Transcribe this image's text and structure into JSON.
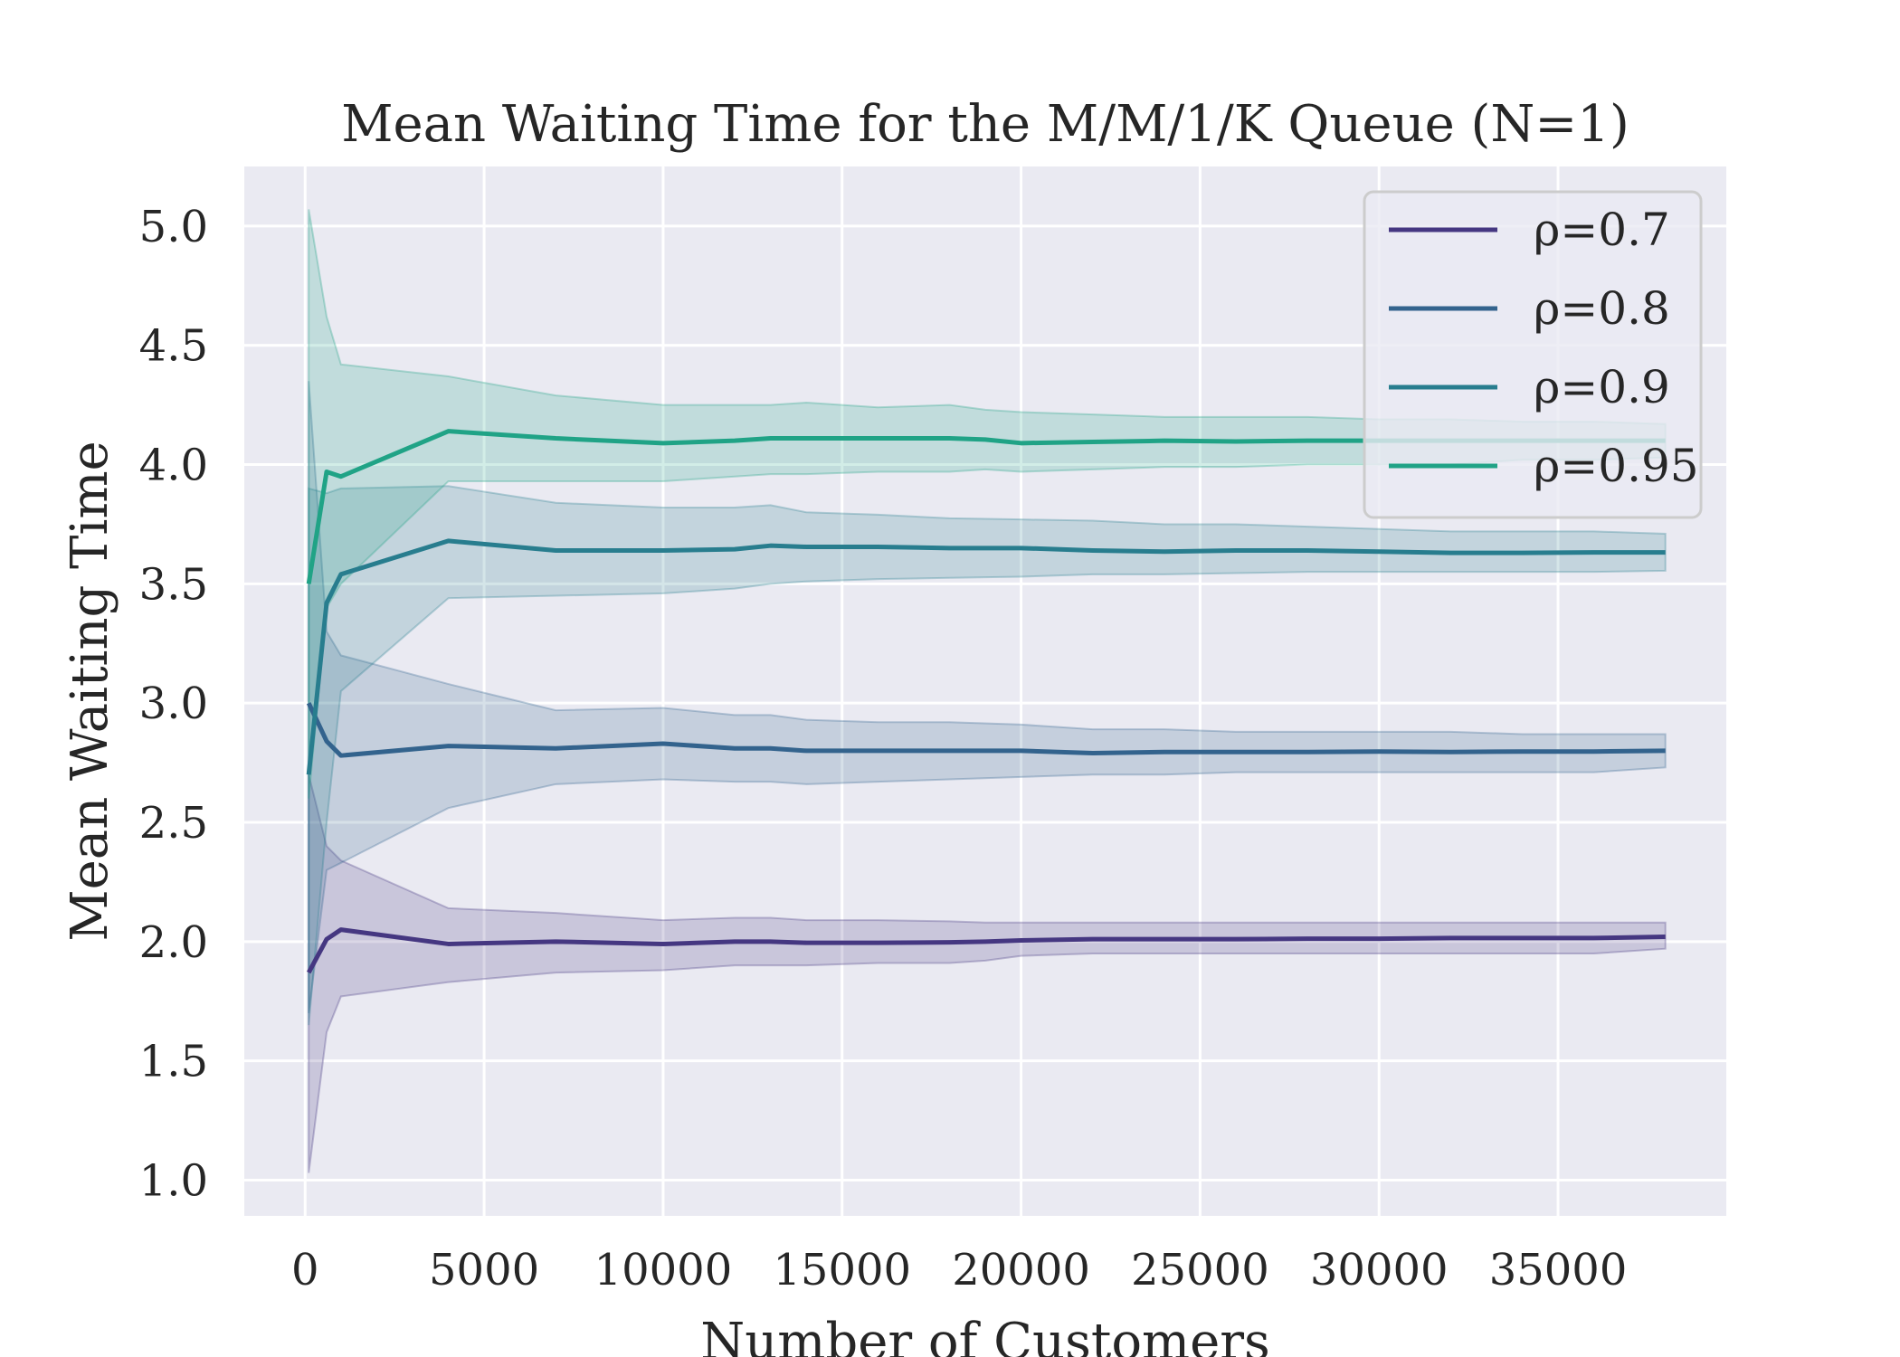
{
  "chart_data": {
    "type": "line",
    "title": "Mean Waiting Time for the M/M/1/K Queue (N=1)",
    "xlabel": "Number of Customers",
    "ylabel": "Mean Waiting Time",
    "xlim": [
      -1700,
      39700
    ],
    "ylim": [
      0.85,
      5.25
    ],
    "xticks": [
      0,
      5000,
      10000,
      15000,
      20000,
      25000,
      30000,
      35000
    ],
    "yticks": [
      1.0,
      1.5,
      2.0,
      2.5,
      3.0,
      3.5,
      4.0,
      4.5,
      5.0
    ],
    "xtick_labels": [
      "0",
      "5000",
      "10000",
      "15000",
      "20000",
      "25000",
      "30000",
      "35000"
    ],
    "ytick_labels": [
      "1.0",
      "1.5",
      "2.0",
      "2.5",
      "3.0",
      "3.5",
      "4.0",
      "4.5",
      "5.0"
    ],
    "grid": true,
    "legend_position": "top-right",
    "background": "#eaeaf2",
    "series": [
      {
        "name": "ρ=0.7",
        "color": "#453781",
        "x": [
          100,
          600,
          1000,
          4000,
          7000,
          10000,
          12000,
          13000,
          14000,
          16000,
          18000,
          19000,
          20000,
          22000,
          24000,
          26000,
          28000,
          30000,
          32000,
          34000,
          36000,
          38000
        ],
        "y": [
          1.87,
          2.01,
          2.05,
          1.99,
          2.0,
          1.99,
          2.0,
          2.0,
          1.995,
          1.995,
          1.997,
          2.0,
          2.005,
          2.01,
          2.01,
          2.01,
          2.012,
          2.012,
          2.015,
          2.015,
          2.015,
          2.02
        ],
        "lower": [
          1.03,
          1.62,
          1.77,
          1.83,
          1.87,
          1.88,
          1.9,
          1.9,
          1.9,
          1.91,
          1.91,
          1.92,
          1.94,
          1.95,
          1.95,
          1.95,
          1.95,
          1.95,
          1.95,
          1.95,
          1.95,
          1.97
        ],
        "upper": [
          2.7,
          2.4,
          2.34,
          2.14,
          2.12,
          2.09,
          2.1,
          2.1,
          2.09,
          2.09,
          2.085,
          2.08,
          2.08,
          2.08,
          2.08,
          2.08,
          2.08,
          2.08,
          2.08,
          2.08,
          2.08,
          2.08
        ]
      },
      {
        "name": "ρ=0.8",
        "color": "#33638d",
        "x": [
          100,
          600,
          1000,
          4000,
          7000,
          10000,
          12000,
          13000,
          14000,
          16000,
          18000,
          20000,
          22000,
          24000,
          26000,
          28000,
          30000,
          32000,
          34000,
          36000,
          38000
        ],
        "y": [
          3.0,
          2.84,
          2.78,
          2.82,
          2.81,
          2.83,
          2.81,
          2.81,
          2.8,
          2.8,
          2.8,
          2.8,
          2.79,
          2.795,
          2.795,
          2.795,
          2.797,
          2.795,
          2.797,
          2.797,
          2.8
        ],
        "lower": [
          1.7,
          2.3,
          2.33,
          2.56,
          2.66,
          2.68,
          2.67,
          2.67,
          2.66,
          2.67,
          2.68,
          2.69,
          2.7,
          2.7,
          2.71,
          2.71,
          2.71,
          2.71,
          2.71,
          2.71,
          2.73
        ],
        "upper": [
          4.35,
          3.3,
          3.2,
          3.08,
          2.97,
          2.98,
          2.95,
          2.95,
          2.93,
          2.92,
          2.92,
          2.91,
          2.89,
          2.89,
          2.88,
          2.88,
          2.88,
          2.88,
          2.87,
          2.87,
          2.87
        ]
      },
      {
        "name": "ρ=0.9",
        "color": "#287d8e",
        "x": [
          100,
          600,
          1000,
          4000,
          7000,
          10000,
          12000,
          13000,
          14000,
          16000,
          18000,
          20000,
          22000,
          24000,
          26000,
          28000,
          30000,
          32000,
          34000,
          36000,
          38000
        ],
        "y": [
          2.7,
          3.42,
          3.54,
          3.68,
          3.64,
          3.64,
          3.645,
          3.66,
          3.655,
          3.655,
          3.65,
          3.65,
          3.64,
          3.635,
          3.64,
          3.64,
          3.635,
          3.63,
          3.63,
          3.632,
          3.632
        ],
        "lower": [
          1.65,
          2.5,
          3.05,
          3.44,
          3.45,
          3.46,
          3.48,
          3.5,
          3.51,
          3.52,
          3.525,
          3.53,
          3.54,
          3.54,
          3.545,
          3.55,
          3.55,
          3.55,
          3.55,
          3.55,
          3.555
        ],
        "upper": [
          3.9,
          3.88,
          3.9,
          3.91,
          3.84,
          3.82,
          3.82,
          3.83,
          3.8,
          3.79,
          3.775,
          3.77,
          3.765,
          3.75,
          3.75,
          3.74,
          3.73,
          3.72,
          3.72,
          3.72,
          3.71
        ]
      },
      {
        "name": "ρ=0.95",
        "color": "#20a386",
        "x": [
          100,
          600,
          1000,
          4000,
          7000,
          10000,
          12000,
          13000,
          14000,
          16000,
          18000,
          19000,
          20000,
          22000,
          24000,
          26000,
          28000,
          30000,
          32000,
          34000,
          36000,
          38000
        ],
        "y": [
          3.5,
          3.97,
          3.95,
          4.14,
          4.11,
          4.09,
          4.1,
          4.11,
          4.11,
          4.11,
          4.11,
          4.105,
          4.09,
          4.095,
          4.1,
          4.097,
          4.1,
          4.1,
          4.1,
          4.1,
          4.1,
          4.1
        ],
        "lower": [
          2.6,
          3.4,
          3.5,
          3.93,
          3.93,
          3.93,
          3.95,
          3.96,
          3.96,
          3.97,
          3.97,
          3.98,
          3.97,
          3.98,
          3.99,
          3.99,
          4.0,
          4.0,
          4.0,
          4.02,
          4.02,
          4.03
        ],
        "upper": [
          5.07,
          4.62,
          4.42,
          4.37,
          4.29,
          4.25,
          4.25,
          4.25,
          4.26,
          4.24,
          4.25,
          4.23,
          4.22,
          4.21,
          4.2,
          4.2,
          4.2,
          4.19,
          4.19,
          4.18,
          4.18,
          4.17
        ]
      }
    ]
  }
}
